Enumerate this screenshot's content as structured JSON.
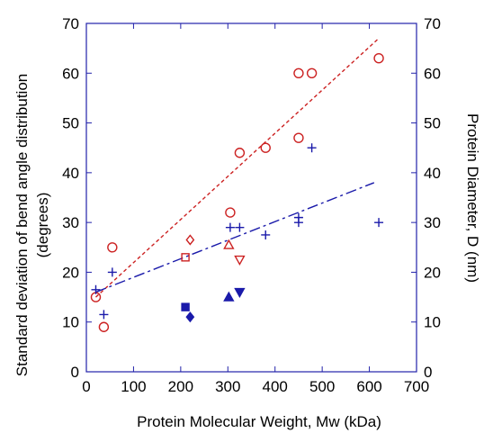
{
  "chart_data": {
    "type": "scatter",
    "title": "",
    "xlabel": "Protein Molecular Weight, Mw (kDa)",
    "ylabel_left": "Standard deviation of bend angle distribution (degrees)",
    "ylabel_left_lines": [
      "Standard deviation of bend angle distribution",
      "(degrees)"
    ],
    "ylabel_right": "Protein Diameter, D (nm)",
    "xlim": [
      0,
      700
    ],
    "ylim_left": [
      0,
      70
    ],
    "ylim_right": [
      0,
      70
    ],
    "xticks": [
      "0",
      "100",
      "200",
      "300",
      "400",
      "500",
      "600",
      "700"
    ],
    "yticks_left": [
      "0",
      "10",
      "20",
      "30",
      "40",
      "50",
      "60",
      "70"
    ],
    "yticks_right": [
      "0",
      "10",
      "20",
      "30",
      "40",
      "50",
      "60",
      "70"
    ],
    "grid": false,
    "colors": {
      "red": "#cc2222",
      "blue": "#1a1aaa",
      "axis": "#2222aa"
    },
    "series": [
      {
        "marker": "open-circle",
        "color": "#cc2222",
        "axis": "left",
        "points": [
          [
            20,
            15
          ],
          [
            37,
            9
          ],
          [
            55,
            25
          ],
          [
            305,
            32
          ],
          [
            325,
            44
          ],
          [
            380,
            45
          ],
          [
            450,
            60
          ],
          [
            450,
            47
          ],
          [
            478,
            60
          ],
          [
            620,
            63
          ]
        ]
      },
      {
        "marker": "open-square",
        "color": "#cc2222",
        "axis": "left",
        "points": [
          [
            210,
            23
          ]
        ]
      },
      {
        "marker": "open-diamond",
        "color": "#cc2222",
        "axis": "left",
        "points": [
          [
            220,
            26.5
          ]
        ]
      },
      {
        "marker": "open-triangle-up",
        "color": "#cc2222",
        "axis": "left",
        "points": [
          [
            302,
            25.5
          ]
        ]
      },
      {
        "marker": "open-triangle-down",
        "color": "#cc2222",
        "axis": "left",
        "points": [
          [
            325,
            22.5
          ]
        ]
      },
      {
        "marker": "plus",
        "color": "#1a1aaa",
        "axis": "right",
        "points": [
          [
            20,
            16.5
          ],
          [
            37,
            11.5
          ],
          [
            55,
            20
          ],
          [
            305,
            29
          ],
          [
            325,
            29
          ],
          [
            380,
            27.5
          ],
          [
            450,
            31
          ],
          [
            450,
            30
          ],
          [
            478,
            45
          ],
          [
            620,
            30
          ]
        ]
      },
      {
        "marker": "filled-square",
        "color": "#1a1aaa",
        "axis": "right",
        "points": [
          [
            210,
            13
          ]
        ]
      },
      {
        "marker": "filled-diamond",
        "color": "#1a1aaa",
        "axis": "right",
        "points": [
          [
            220,
            11
          ]
        ]
      },
      {
        "marker": "filled-triangle-up",
        "color": "#1a1aaa",
        "axis": "right",
        "points": [
          [
            302,
            15
          ]
        ]
      },
      {
        "marker": "filled-triangle-down",
        "color": "#1a1aaa",
        "axis": "right",
        "points": [
          [
            325,
            16
          ]
        ]
      }
    ],
    "fit_lines": [
      {
        "style": "dotted",
        "color": "#cc2222",
        "axis": "left",
        "points": [
          [
            20,
            15
          ],
          [
            620,
            67
          ]
        ]
      },
      {
        "style": "dashed",
        "color": "#1a1aaa",
        "axis": "right",
        "points": [
          [
            20,
            16
          ],
          [
            610,
            38
          ]
        ]
      }
    ]
  }
}
